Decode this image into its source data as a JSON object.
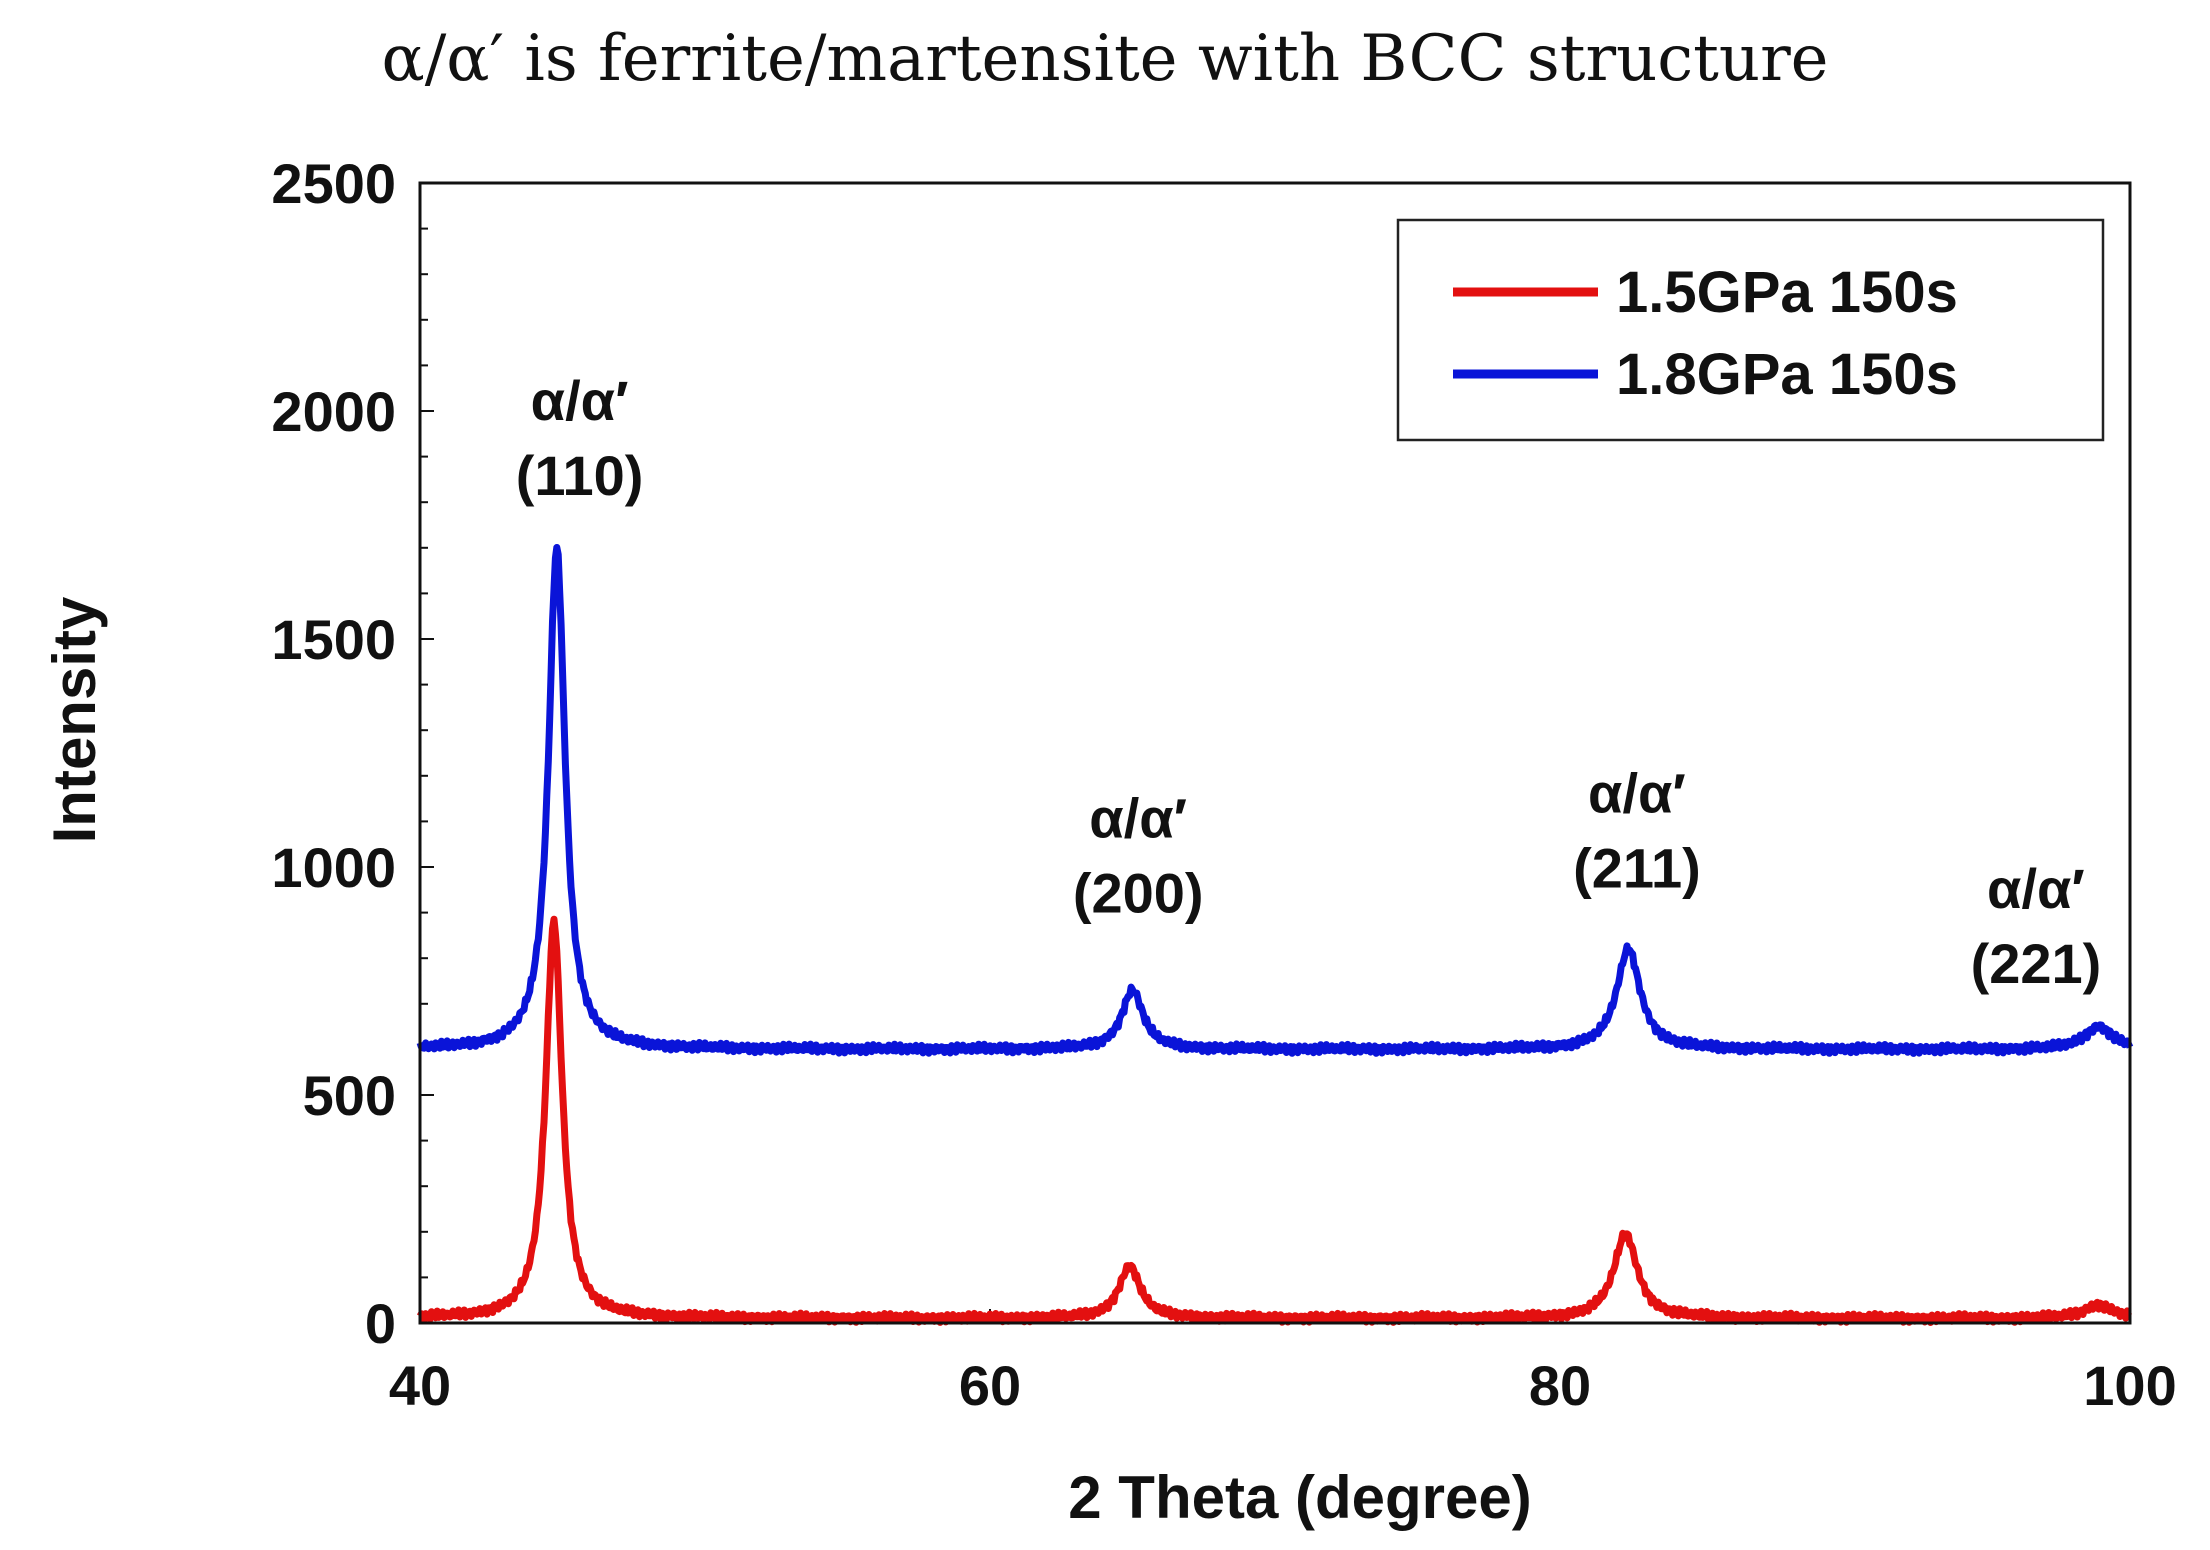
{
  "chart_data": {
    "type": "line",
    "title": "α/α′ is ferrite/martensite with BCC structure",
    "xlabel": "2 Theta (degree)",
    "ylabel": "Intensity",
    "xlim": [
      40,
      100
    ],
    "ylim": [
      0,
      2500
    ],
    "xticks": [
      "40",
      "60",
      "80",
      "100"
    ],
    "yticks": [
      "0",
      "500",
      "1000",
      "1500",
      "2000",
      "2500"
    ],
    "legend_position": "top-right",
    "series": [
      {
        "name": "1.5GPa 150s",
        "color": "#e31010",
        "baseline": 10,
        "peaks": [
          {
            "x": 44.7,
            "height": 870,
            "width": 0.35
          },
          {
            "x": 64.9,
            "height": 115,
            "width": 0.45
          },
          {
            "x": 82.3,
            "height": 185,
            "width": 0.5
          },
          {
            "x": 98.9,
            "height": 30,
            "width": 0.6
          }
        ]
      },
      {
        "name": "1.8GPa 150s",
        "color": "#0a14d8",
        "baseline": 600,
        "peaks": [
          {
            "x": 44.8,
            "height": 1100,
            "width": 0.35
          },
          {
            "x": 65.0,
            "height": 130,
            "width": 0.45
          },
          {
            "x": 82.4,
            "height": 220,
            "width": 0.5
          },
          {
            "x": 98.9,
            "height": 50,
            "width": 0.6
          }
        ]
      }
    ],
    "annotations": [
      {
        "line1": "α/α′",
        "line2": "(110)",
        "x": 45.6,
        "y": 1980
      },
      {
        "line1": "α/α′",
        "line2": "(200)",
        "x": 65.2,
        "y": 1065
      },
      {
        "line1": "α/α′",
        "line2": "(211)",
        "x": 82.7,
        "y": 1120
      },
      {
        "line1": "α/α′",
        "line2": "(221)",
        "x": 96.7,
        "y": 910
      }
    ]
  }
}
